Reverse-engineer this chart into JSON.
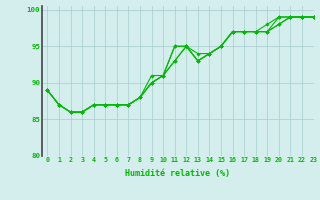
{
  "xlabel": "Humidité relative (%)",
  "xlim": [
    -0.5,
    23
  ],
  "ylim": [
    80,
    100.5
  ],
  "yticks": [
    80,
    85,
    90,
    95,
    100
  ],
  "xticks": [
    0,
    1,
    2,
    3,
    4,
    5,
    6,
    7,
    8,
    9,
    10,
    11,
    12,
    13,
    14,
    15,
    16,
    17,
    18,
    19,
    20,
    21,
    22,
    23
  ],
  "line_color": "#00bb00",
  "bg_color": "#d4eeee",
  "grid_color": "#a8cccc",
  "series": [
    [
      89,
      87,
      86,
      86,
      87,
      87,
      87,
      87,
      88,
      91,
      91,
      95,
      95,
      93,
      94,
      95,
      97,
      97,
      97,
      98,
      99,
      99,
      99,
      99
    ],
    [
      89,
      87,
      86,
      86,
      87,
      87,
      87,
      87,
      88,
      90,
      91,
      95,
      95,
      94,
      94,
      95,
      97,
      97,
      97,
      97,
      99,
      99,
      99,
      99
    ],
    [
      89,
      87,
      86,
      86,
      87,
      87,
      87,
      87,
      88,
      90,
      91,
      93,
      95,
      93,
      94,
      95,
      97,
      97,
      97,
      97,
      98,
      99,
      99,
      99
    ],
    [
      89,
      87,
      86,
      86,
      87,
      87,
      87,
      87,
      88,
      90,
      91,
      93,
      95,
      93,
      94,
      95,
      97,
      97,
      97,
      97,
      98,
      99,
      99,
      99
    ]
  ],
  "marker": "D",
  "marker_size": 1.8,
  "line_width": 0.8,
  "tick_fontsize": 4.8,
  "xlabel_fontsize": 6.0
}
